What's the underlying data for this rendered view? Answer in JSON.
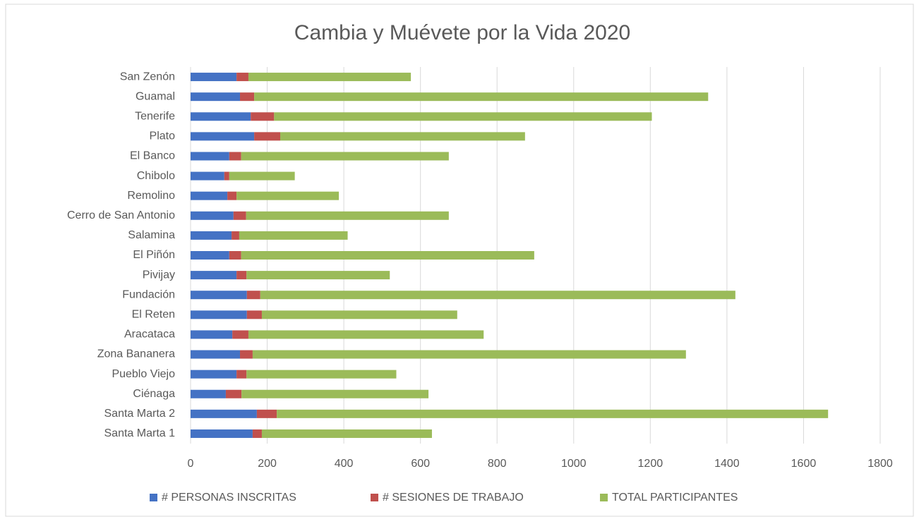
{
  "chart_data": {
    "type": "stacked_barh",
    "title": "Cambia y Muévete por la Vida 2020",
    "categories": [
      "San Zenón",
      "Guamal",
      "Tenerife",
      "Plato",
      "El Banco",
      "Chibolo",
      "Remolino",
      "Cerro de San Antonio",
      "Salamina",
      "El Piñón",
      "Pivijay",
      "Fundación",
      "El Reten",
      "Aracataca",
      "Zona Bananera",
      "Pueblo Viejo",
      "Ciénaga",
      "Santa Marta 2",
      "Santa Marta 1"
    ],
    "series": [
      {
        "name": "# PERSONAS INSCRITAS",
        "color": "#4472c4",
        "values": [
          120,
          129,
          157,
          166,
          101,
          88,
          96,
          112,
          107,
          101,
          120,
          147,
          147,
          109,
          129,
          120,
          92,
          173,
          162
        ]
      },
      {
        "name": "# SESIONES DE TRABAJO",
        "color": "#c0504d",
        "values": [
          31,
          37,
          61,
          68,
          31,
          13,
          24,
          33,
          20,
          31,
          26,
          35,
          39,
          42,
          33,
          26,
          41,
          52,
          24
        ]
      },
      {
        "name": "TOTAL PARTICIPANTES",
        "color": "#9bbb59",
        "values": [
          424,
          1185,
          986,
          639,
          542,
          171,
          267,
          529,
          283,
          765,
          374,
          1240,
          510,
          614,
          1131,
          391,
          488,
          1439,
          444
        ]
      }
    ],
    "xlim": [
      0,
      1800
    ],
    "xticks": [
      0,
      200,
      400,
      600,
      800,
      1000,
      1200,
      1400,
      1600,
      1800
    ],
    "grid": true,
    "legend": "bottom"
  }
}
